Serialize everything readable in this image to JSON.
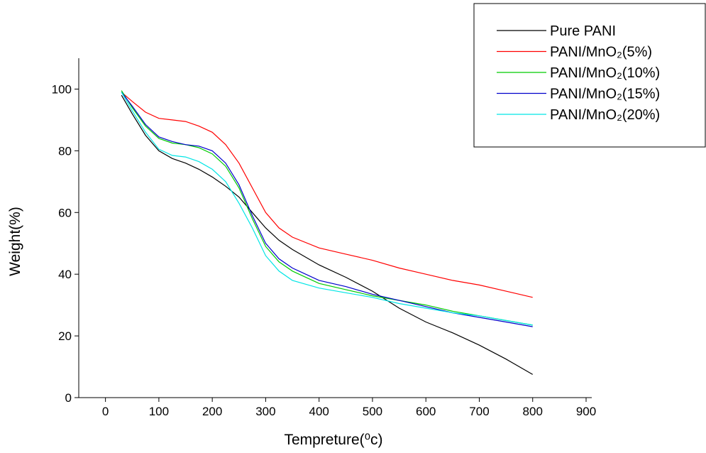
{
  "chart_data": {
    "type": "line",
    "x": [
      30,
      50,
      75,
      100,
      125,
      150,
      175,
      200,
      225,
      250,
      275,
      300,
      325,
      350,
      400,
      450,
      500,
      550,
      600,
      650,
      700,
      750,
      800
    ],
    "series": [
      {
        "name": "Pure PANI",
        "color": "#000000",
        "values": [
          98,
          92,
          85,
          80,
          77.5,
          76,
          74,
          71.5,
          68.5,
          65,
          60,
          55,
          51,
          48,
          43,
          39,
          34.5,
          29,
          24.5,
          21,
          17,
          12.5,
          7.5
        ]
      },
      {
        "name": "PANI/MnO₂(5%)",
        "color": "#ff0000",
        "values": [
          99,
          96,
          92.5,
          90.5,
          90,
          89.5,
          88,
          86,
          82,
          76,
          68,
          60,
          55,
          52,
          48.5,
          46.5,
          44.5,
          42,
          40,
          38,
          36.5,
          34.5,
          32.5
        ]
      },
      {
        "name": "PANI/MnO₂(10%)",
        "color": "#00cc00",
        "values": [
          99.5,
          94,
          88,
          84,
          82.5,
          82,
          81,
          79,
          75,
          68,
          58,
          49,
          44,
          41,
          37,
          35,
          33,
          31.5,
          30,
          28,
          26.5,
          25,
          23.5
        ]
      },
      {
        "name": "PANI/MnO₂(15%)",
        "color": "#0000cc",
        "values": [
          99,
          94.5,
          88.5,
          84.5,
          83,
          82,
          81.5,
          80,
          76,
          69,
          59,
          50,
          45,
          42,
          38,
          36,
          33.5,
          31.5,
          29.5,
          27.5,
          26,
          24.5,
          23
        ]
      },
      {
        "name": "PANI/MnO₂(20%)",
        "color": "#00e5e5",
        "values": [
          99,
          93,
          86,
          80.5,
          78.5,
          78,
          76.5,
          74,
          70,
          63,
          55,
          46,
          41,
          38,
          35.5,
          34,
          32.5,
          30.5,
          29,
          27.5,
          26.5,
          25,
          23.5
        ]
      }
    ],
    "xlabel": "Tempreture(⁰c)",
    "ylabel": "Weight(%)",
    "xlim": [
      -50,
      900
    ],
    "xticks": [
      0,
      100,
      200,
      300,
      400,
      500,
      600,
      700,
      800,
      900
    ],
    "ylim": [
      0,
      110
    ],
    "yticks": [
      0,
      20,
      40,
      60,
      80,
      100
    ],
    "legend": "upper right"
  }
}
